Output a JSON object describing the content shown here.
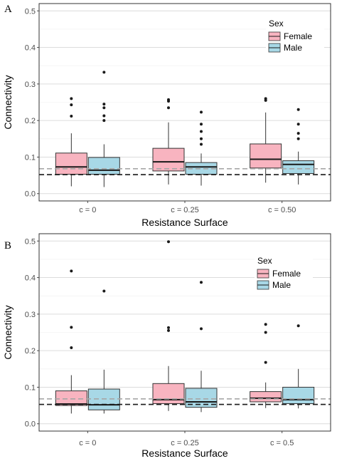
{
  "chart_data": [
    {
      "panel": "A",
      "type": "boxplot",
      "xlabel": "Resistance Surface",
      "ylabel": "Connectivity",
      "ylim": [
        -0.02,
        0.52
      ],
      "yticks": [
        0.0,
        0.1,
        0.2,
        0.3,
        0.4,
        0.5
      ],
      "ytick_labels": [
        "0.0",
        "0.1",
        "0.2",
        "0.3",
        "0.4",
        "0.5"
      ],
      "categories": [
        "c = 0",
        "c = 0.25",
        "c = 0.50"
      ],
      "legend": {
        "title": "Sex",
        "position": "top-right",
        "entries": [
          "Female",
          "Male"
        ]
      },
      "series": [
        {
          "name": "Female",
          "color": "#f8b4c0",
          "boxes": [
            {
              "min": 0.02,
              "q1": 0.053,
              "median": 0.073,
              "q3": 0.111,
              "max": 0.165,
              "outliers": [
                0.212,
                0.243,
                0.26
              ]
            },
            {
              "min": 0.025,
              "q1": 0.062,
              "median": 0.087,
              "q3": 0.124,
              "max": 0.195,
              "outliers": [
                0.235,
                0.253,
                0.257
              ]
            },
            {
              "min": 0.03,
              "q1": 0.07,
              "median": 0.094,
              "q3": 0.136,
              "max": 0.222,
              "outliers": [
                0.255,
                0.26
              ]
            }
          ]
        },
        {
          "name": "Male",
          "color": "#a8d8e6",
          "boxes": [
            {
              "min": 0.018,
              "q1": 0.053,
              "median": 0.064,
              "q3": 0.099,
              "max": 0.135,
              "outliers": [
                0.2,
                0.213,
                0.235,
                0.245,
                0.332
              ]
            },
            {
              "min": 0.022,
              "q1": 0.053,
              "median": 0.073,
              "q3": 0.085,
              "max": 0.11,
              "outliers": [
                0.135,
                0.15,
                0.17,
                0.19,
                0.223
              ]
            },
            {
              "min": 0.025,
              "q1": 0.055,
              "median": 0.08,
              "q3": 0.09,
              "max": 0.115,
              "outliers": [
                0.15,
                0.165,
                0.19,
                0.23
              ]
            }
          ]
        }
      ],
      "reference_lines": [
        {
          "y": 0.068,
          "color": "#a6a6a6",
          "style": "dashed"
        },
        {
          "y": 0.052,
          "color": "#1a1a1a",
          "style": "dashed"
        }
      ]
    },
    {
      "panel": "B",
      "type": "boxplot",
      "xlabel": "Resistance Surface",
      "ylabel": "Connectivity",
      "ylim": [
        -0.02,
        0.52
      ],
      "yticks": [
        0.0,
        0.1,
        0.2,
        0.3,
        0.4,
        0.5
      ],
      "ytick_labels": [
        "0.0",
        "0.1",
        "0.2",
        "0.3",
        "0.4",
        "0.5"
      ],
      "categories": [
        "c = 0",
        "c = 0.25",
        "c = 0.5"
      ],
      "legend": {
        "title": "Sex",
        "position": "top-right",
        "entries": [
          "Female",
          "Male"
        ]
      },
      "series": [
        {
          "name": "Female",
          "color": "#f8b4c0",
          "boxes": [
            {
              "min": 0.028,
              "q1": 0.05,
              "median": 0.054,
              "q3": 0.09,
              "max": 0.133,
              "outliers": [
                0.208,
                0.264,
                0.418
              ]
            },
            {
              "min": 0.035,
              "q1": 0.055,
              "median": 0.066,
              "q3": 0.11,
              "max": 0.158,
              "outliers": [
                0.255,
                0.263,
                0.498
              ]
            },
            {
              "min": 0.043,
              "q1": 0.06,
              "median": 0.07,
              "q3": 0.088,
              "max": 0.113,
              "outliers": [
                0.168,
                0.25,
                0.272
              ]
            }
          ]
        },
        {
          "name": "Male",
          "color": "#a8d8e6",
          "boxes": [
            {
              "min": 0.028,
              "q1": 0.038,
              "median": 0.052,
              "q3": 0.095,
              "max": 0.148,
              "outliers": [
                0.363
              ]
            },
            {
              "min": 0.032,
              "q1": 0.045,
              "median": 0.06,
              "q3": 0.097,
              "max": 0.145,
              "outliers": [
                0.26,
                0.387
              ]
            },
            {
              "min": 0.042,
              "q1": 0.055,
              "median": 0.066,
              "q3": 0.1,
              "max": 0.15,
              "outliers": [
                0.268
              ]
            }
          ]
        }
      ],
      "reference_lines": [
        {
          "y": 0.068,
          "color": "#a6a6a6",
          "style": "dashed"
        },
        {
          "y": 0.053,
          "color": "#1a1a1a",
          "style": "dashed"
        }
      ]
    }
  ]
}
